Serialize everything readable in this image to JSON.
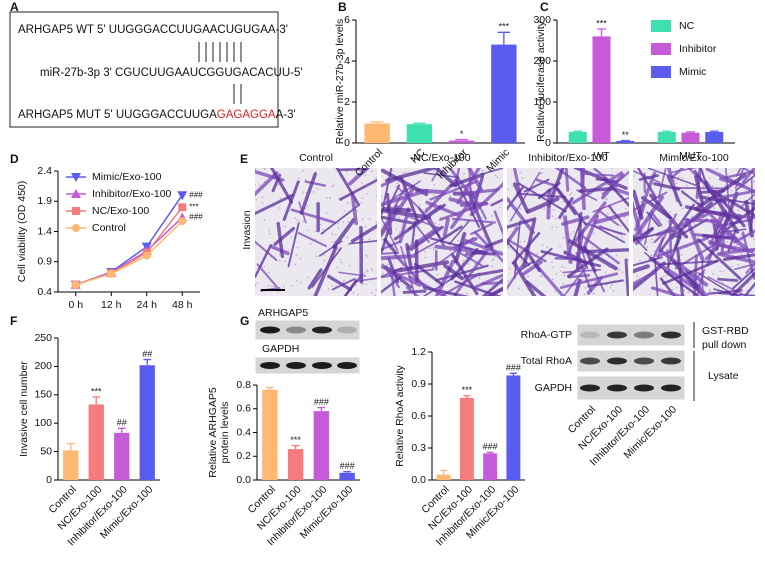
{
  "panel_letters": [
    "A",
    "B",
    "C",
    "D",
    "E",
    "F",
    "G"
  ],
  "panel_a": {
    "wt": "ARHGAP5 WT  5' UUGGGACCUUGAACUGUGAA-3'",
    "mir": "miR-27b-3p 3' CGUCUUGAAUCGGUGACACUU-5'",
    "mut": [
      "ARHGAP5 MUT  5' UUGGGACCUUGA",
      "GAGAGGA",
      "A-3'"
    ]
  },
  "panel_e": {
    "columns": [
      "Control",
      "NC/Exo-100",
      "Inhibitor/Exo-100",
      "Mimic/Exo-100"
    ],
    "row_label": "Invasion"
  },
  "panel_g_blots": {
    "left_rows": [
      "ARHGAP5",
      "GAPDH"
    ],
    "right_rows": [
      "RhoA-GTP",
      "Total RhoA",
      "GAPDH"
    ],
    "pull_down": [
      "GST-RBD",
      "pull down"
    ],
    "lysate": "Lysate",
    "lane_labels": [
      "Control",
      "NC/Exo-100",
      "Inhibitor/Exo-100",
      "Mimic/Exo-100"
    ]
  },
  "chart_data": [
    {
      "type": "bar",
      "ylabel": "Relative miR-27b-3p levels",
      "categories": [
        "Control",
        "NC",
        "Inhibitor",
        "Mimic"
      ],
      "values": [
        0.95,
        0.92,
        0.12,
        4.8
      ],
      "errors": [
        0.08,
        0.05,
        0.05,
        0.6
      ],
      "annotations": [
        null,
        null,
        "*",
        "***"
      ],
      "colors": [
        "#ffb872",
        "#3ee0b0",
        "#c55bd6",
        "#5a5cf0"
      ],
      "ylim": [
        0,
        6
      ],
      "yticks": [
        0,
        2,
        4,
        6
      ]
    },
    {
      "type": "bar",
      "ylabel": "Relative luciferase activity",
      "categories": [
        "WT",
        "MUT"
      ],
      "series": [
        {
          "name": "NC",
          "color": "#3ee0b0",
          "values": [
            27,
            27
          ],
          "errors": [
            2,
            2
          ]
        },
        {
          "name": "Inhibitor",
          "color": "#c55bd6",
          "values": [
            260,
            25
          ],
          "errors": [
            18,
            2
          ],
          "annotations": [
            "***",
            null
          ]
        },
        {
          "name": "Mimic",
          "color": "#5a5cf0",
          "values": [
            5,
            27
          ],
          "errors": [
            1,
            2
          ],
          "annotations": [
            "**",
            null
          ]
        }
      ],
      "legend": "upper right",
      "ylim": [
        0,
        300
      ],
      "yticks": [
        0,
        100,
        200,
        300
      ]
    },
    {
      "type": "line",
      "ylabel": "Cell viability (OD 450)",
      "categories": [
        "0 h",
        "12 h",
        "24 h",
        "48 h"
      ],
      "series": [
        {
          "name": "Mimic/Exo-100",
          "color": "#5a5cf0",
          "marker": "triangle-down",
          "values": [
            0.52,
            0.73,
            1.15,
            2.0
          ],
          "annotations": [
            null,
            null,
            null,
            "###"
          ]
        },
        {
          "name": "Inhibitor/Exo-100",
          "color": "#c55bd6",
          "marker": "triangle-up",
          "values": [
            0.52,
            0.72,
            1.08,
            1.63
          ],
          "annotations": [
            null,
            null,
            null,
            "###"
          ]
        },
        {
          "name": "NC/Exo-100",
          "color": "#f47c7c",
          "marker": "square",
          "values": [
            0.52,
            0.71,
            1.05,
            1.8
          ],
          "annotations": [
            null,
            null,
            null,
            "***"
          ]
        },
        {
          "name": "Control",
          "color": "#ffb872",
          "marker": "circle",
          "values": [
            0.52,
            0.7,
            1.0,
            1.57
          ]
        }
      ],
      "legend": "upper left",
      "ylim": [
        0.4,
        2.4
      ],
      "yticks": [
        0.4,
        0.9,
        1.4,
        1.9,
        2.4
      ]
    },
    {
      "type": "bar",
      "ylabel": "Invasive cell number",
      "categories": [
        "Control",
        "NC/Exo-100",
        "Inhibitor/Exo-100",
        "Mimic/Exo-100"
      ],
      "values": [
        52,
        133,
        83,
        202
      ],
      "errors": [
        12,
        13,
        8,
        10
      ],
      "annotations": [
        null,
        "***",
        "##",
        "##"
      ],
      "colors": [
        "#ffb872",
        "#f47c7c",
        "#c55bd6",
        "#5a5cf0"
      ],
      "ylim": [
        0,
        250
      ],
      "yticks": [
        0,
        50,
        100,
        150,
        200,
        250
      ]
    },
    {
      "type": "bar",
      "ylabel": [
        "Relative ARHGAP5",
        "protein levels"
      ],
      "categories": [
        "Control",
        "NC/Exo-100",
        "Inhibitor/Exo-100",
        "Mimic/Exo-100"
      ],
      "values": [
        0.76,
        0.26,
        0.58,
        0.06
      ],
      "errors": [
        0.02,
        0.03,
        0.03,
        0.01
      ],
      "annotations": [
        null,
        "***",
        "###",
        "###"
      ],
      "colors": [
        "#ffb872",
        "#f47c7c",
        "#c55bd6",
        "#5a5cf0"
      ],
      "ylim": [
        0,
        0.8
      ],
      "yticks": [
        {
          "value": 0,
          "label": "0.0"
        },
        0.2,
        0.4,
        0.6,
        0.8
      ]
    },
    {
      "type": "bar",
      "ylabel": "Relative RhoA activity",
      "categories": [
        "Control",
        "NC/Exo-100",
        "Inhibitor/Exo-100",
        "Mimic/Exo-100"
      ],
      "values": [
        0.05,
        0.77,
        0.25,
        0.98
      ],
      "errors": [
        0.04,
        0.02,
        0.01,
        0.02
      ],
      "annotations": [
        null,
        "***",
        "###",
        "###"
      ],
      "colors": [
        "#ffb872",
        "#f47c7c",
        "#c55bd6",
        "#5a5cf0"
      ],
      "ylim": [
        0,
        1.2
      ],
      "yticks": [
        {
          "value": 0,
          "label": "0.0"
        },
        0.3,
        0.6,
        0.9,
        1.2
      ]
    }
  ]
}
